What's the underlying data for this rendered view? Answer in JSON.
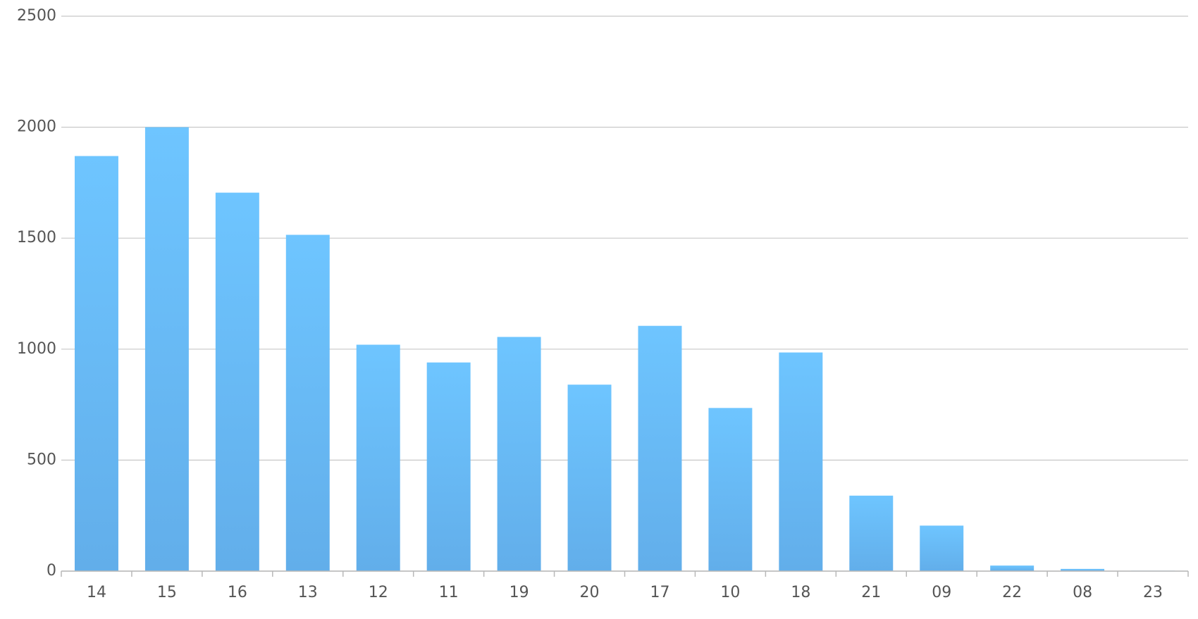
{
  "chart_data": {
    "type": "bar",
    "categories": [
      "14",
      "15",
      "16",
      "13",
      "12",
      "11",
      "19",
      "20",
      "17",
      "10",
      "18",
      "21",
      "09",
      "22",
      "08",
      "23"
    ],
    "values": [
      1870,
      2000,
      1705,
      1515,
      1020,
      940,
      1055,
      840,
      1105,
      735,
      985,
      340,
      205,
      25,
      10,
      2
    ],
    "color": "#67b8f6",
    "ylim": [
      0,
      2500
    ],
    "yticks": [
      0,
      500,
      1000,
      1500,
      2000,
      2500
    ],
    "grid": true
  }
}
